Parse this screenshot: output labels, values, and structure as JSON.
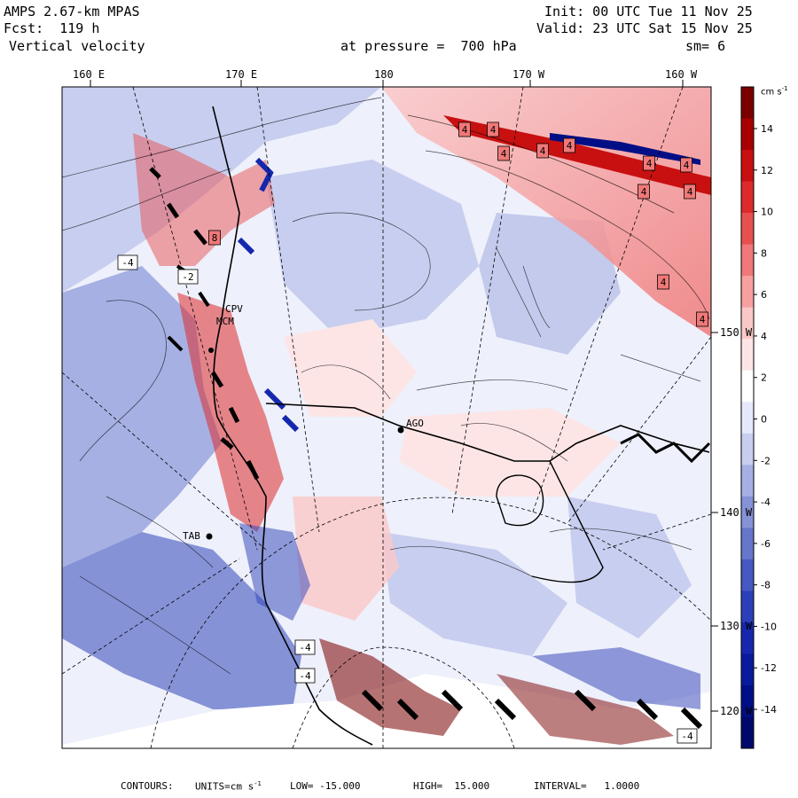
{
  "header": {
    "model": "AMPS 2.67-km MPAS",
    "fcst": "Fcst:  119 h",
    "field": "Vertical velocity",
    "init": "Init: 00 UTC Tue 11 Nov 25",
    "valid": "Valid: 23 UTC Sat 15 Nov 25",
    "pressure": "at pressure =  700 hPa",
    "smooth": "sm= 6"
  },
  "lon_top": [
    "160 E",
    "170 E",
    "180",
    "170 W",
    "160 W"
  ],
  "lat_right": [
    "150 W",
    "140 W",
    "130 W",
    "120 W"
  ],
  "stations": [
    "CPV",
    "MCM",
    "AGO",
    "TAB"
  ],
  "colorbar": {
    "units": "cm s",
    "units_sup": "-1",
    "levels": [
      "14",
      "12",
      "10",
      "8",
      "6",
      "4",
      "2",
      "0",
      "-2",
      "-4",
      "-6",
      "-8",
      "-10",
      "-12",
      "-14"
    ],
    "colors": [
      "#7a0000",
      "#a80000",
      "#c81010",
      "#dc2b2b",
      "#e85050",
      "#f07878",
      "#f7a0a0",
      "#fbc8c8",
      "#fde5e5",
      "#ffffff",
      "#e6e9fb",
      "#c8ceef",
      "#a6b0e3",
      "#8592d6",
      "#6676cb",
      "#4658c1",
      "#2b40b8",
      "#1528ad",
      "#071b9b",
      "#000f86",
      "#00096a"
    ]
  },
  "contour_labels": [
    "4",
    "4",
    "4",
    "4",
    "4",
    "4",
    "4",
    "4",
    "4",
    "4",
    "4",
    "-4",
    "-4",
    "-4",
    "-4",
    "-2",
    "8"
  ],
  "footer": {
    "contours": "CONTOURS:",
    "units": "UNITS=cm s",
    "units_sup": "-1",
    "low": "LOW= -15.000",
    "high": "HIGH=  15.000",
    "interval": "INTERVAL=   1.0000"
  }
}
